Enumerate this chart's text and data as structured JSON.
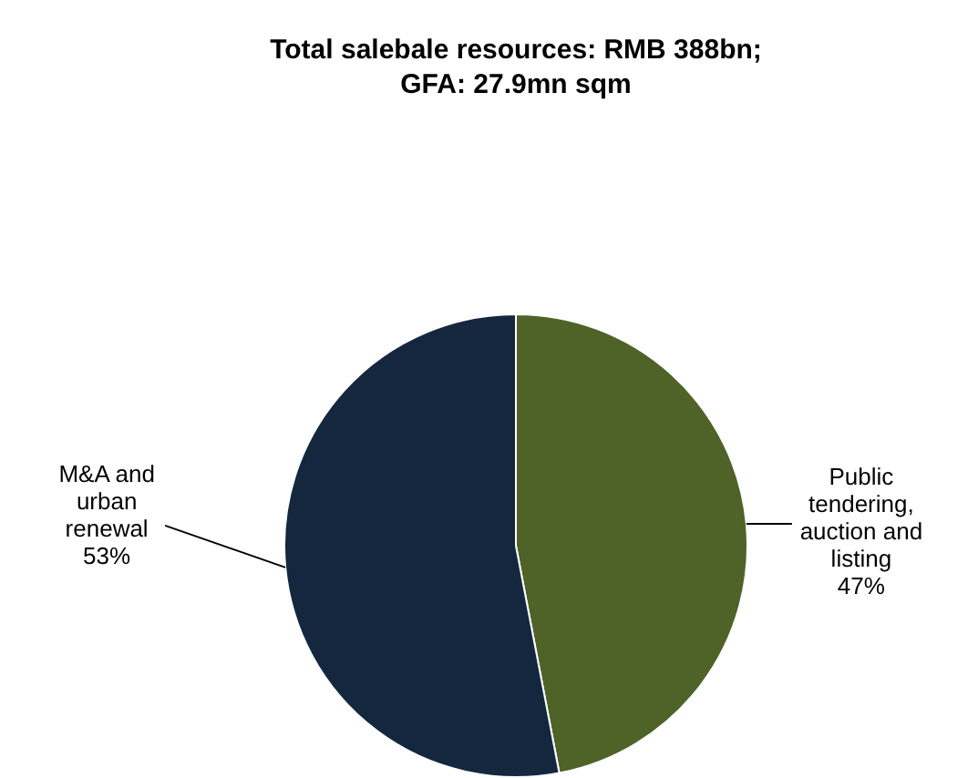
{
  "chart_data": {
    "type": "pie",
    "title": "Total salebale resources: RMB 388bn; GFA: 27.9mn sqm",
    "categories": [
      "Public tendering, auction and listing",
      "M&A and urban renewal"
    ],
    "values": [
      47,
      53
    ],
    "colors": [
      "#4f6228",
      "#14273f"
    ],
    "value_labels": [
      "47%",
      "53%"
    ],
    "legend": false
  }
}
